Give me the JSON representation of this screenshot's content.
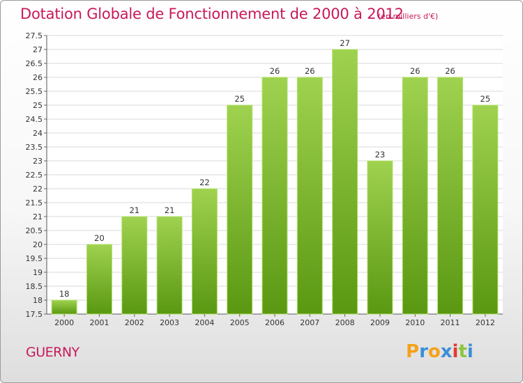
{
  "header": {
    "title": "Dotation Globale de Fonctionnement de 2000 à 2012",
    "unit": "(en milliers d'€)"
  },
  "footer": {
    "commune": "GUERNY",
    "logo_text": "Proxiti"
  },
  "colors": {
    "title": "#c8195a",
    "bar_top": "#9fd24f",
    "bar_bottom": "#5a9812",
    "logo": [
      "#f5a21b",
      "#3a8fd8",
      "#f5a21b",
      "#3a8fd8",
      "#e23b2e",
      "#8cc63f",
      "#3a8fd8"
    ]
  },
  "chart_data": {
    "type": "bar",
    "title": "Dotation Globale de Fonctionnement de 2000 à 2012",
    "subtitle": "(en milliers d'€)",
    "categories": [
      "2000",
      "2001",
      "2002",
      "2003",
      "2004",
      "2005",
      "2006",
      "2007",
      "2008",
      "2009",
      "2010",
      "2011",
      "2012"
    ],
    "values": [
      18,
      20,
      21,
      21,
      22,
      25,
      26,
      26,
      27,
      23,
      26,
      26,
      25
    ],
    "ylim": [
      17.5,
      27.5
    ],
    "yticks": [
      "17.5",
      "18",
      "18.5",
      "19",
      "19.5",
      "20",
      "20.5",
      "21",
      "21.5",
      "22",
      "22.5",
      "23",
      "23.5",
      "24",
      "24.5",
      "25",
      "25.5",
      "26",
      "26.5",
      "27",
      "27.5"
    ],
    "grid": true,
    "xlabel": "",
    "ylabel": ""
  }
}
